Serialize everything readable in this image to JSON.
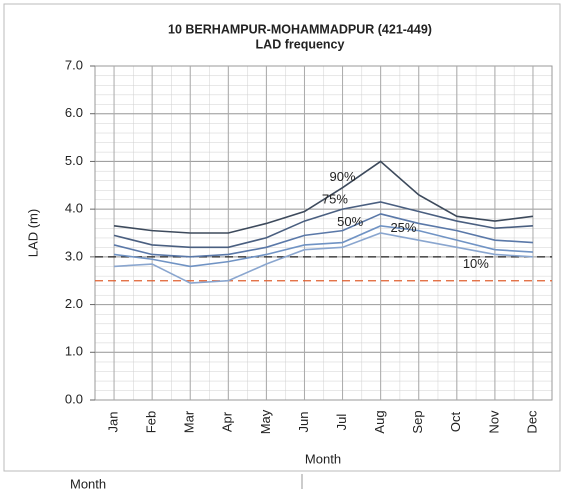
{
  "chart_data": {
    "type": "line",
    "title": "10 BERHAMPUR-MOHAMMADPUR (421-449)",
    "subtitle": "LAD frequency",
    "y_label": "LAD (m)",
    "x_label": "Month",
    "categories": [
      "Jan",
      "Feb",
      "Mar",
      "Apr",
      "May",
      "Jun",
      "Jul",
      "Aug",
      "Sep",
      "Oct",
      "Nov",
      "Dec"
    ],
    "series": [
      {
        "name": "90%",
        "color": "#3d4a5c",
        "values": [
          3.65,
          3.55,
          3.5,
          3.5,
          3.7,
          3.95,
          4.45,
          5.0,
          4.3,
          3.85,
          3.75,
          3.85
        ]
      },
      {
        "name": "75%",
        "color": "#4a5f80",
        "values": [
          3.45,
          3.25,
          3.2,
          3.2,
          3.4,
          3.75,
          4.0,
          4.15,
          3.95,
          3.75,
          3.6,
          3.65
        ]
      },
      {
        "name": "50%",
        "color": "#5a78a8",
        "values": [
          3.25,
          3.05,
          3.0,
          3.05,
          3.2,
          3.45,
          3.55,
          3.9,
          3.7,
          3.55,
          3.35,
          3.3
        ]
      },
      {
        "name": "25%",
        "color": "#7093c4",
        "values": [
          3.05,
          2.95,
          2.8,
          2.9,
          3.05,
          3.25,
          3.3,
          3.65,
          3.55,
          3.35,
          3.15,
          3.1
        ]
      },
      {
        "name": "10%",
        "color": "#8aa6cf",
        "values": [
          2.8,
          2.85,
          2.45,
          2.5,
          2.85,
          3.15,
          3.2,
          3.5,
          3.35,
          3.2,
          3.05,
          3.0
        ]
      }
    ],
    "reference_lines": [
      {
        "value": 3.0,
        "color": "#222222"
      },
      {
        "value": 2.5,
        "color": "#e06030"
      }
    ],
    "ylim": [
      0,
      7
    ],
    "yticks": [
      {
        "value": 0,
        "label": "0.0"
      },
      {
        "value": 1,
        "label": "1.0"
      },
      {
        "value": 2,
        "label": "2.0"
      },
      {
        "value": 3,
        "label": "3.0"
      },
      {
        "value": 4,
        "label": "4.0"
      },
      {
        "value": 5,
        "label": "5.0"
      },
      {
        "value": 6,
        "label": "6.0"
      },
      {
        "value": 7,
        "label": "7.0"
      }
    ],
    "grid": true,
    "footer_fragment": "Month"
  }
}
